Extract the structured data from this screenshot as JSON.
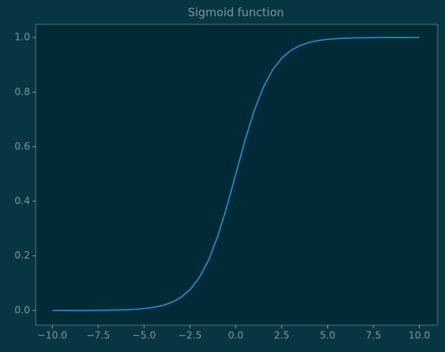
{
  "chart_data": {
    "type": "line",
    "title": "Sigmoid function",
    "x": [
      -10,
      -9.5,
      -9,
      -8.5,
      -8,
      -7.5,
      -7,
      -6.5,
      -6,
      -5.5,
      -5,
      -4.5,
      -4,
      -3.5,
      -3,
      -2.5,
      -2,
      -1.5,
      -1,
      -0.5,
      0,
      0.5,
      1,
      1.5,
      2,
      2.5,
      3,
      3.5,
      4,
      4.5,
      5,
      5.5,
      6,
      6.5,
      7,
      7.5,
      8,
      8.5,
      9,
      9.5,
      10
    ],
    "series": [
      {
        "color": "#268bd2",
        "values": [
          0.0,
          0.0001,
          0.0001,
          0.0002,
          0.0003,
          0.0006,
          0.0009,
          0.0015,
          0.0025,
          0.0041,
          0.0067,
          0.011,
          0.018,
          0.0293,
          0.0474,
          0.0759,
          0.1192,
          0.1824,
          0.2689,
          0.3775,
          0.5,
          0.6225,
          0.7311,
          0.8176,
          0.8808,
          0.9241,
          0.9526,
          0.9707,
          0.982,
          0.989,
          0.9933,
          0.9959,
          0.9975,
          0.9985,
          0.9991,
          0.9994,
          0.9997,
          0.9998,
          0.9999,
          0.9999,
          1.0
        ]
      }
    ],
    "xlim": [
      -10.9,
      11
    ],
    "ylim": [
      -0.054,
      1.048
    ],
    "xticks": [
      {
        "value": -10,
        "label": "−10.0"
      },
      {
        "value": -7.5,
        "label": "−7.5"
      },
      {
        "value": -5,
        "label": "−5.0"
      },
      {
        "value": -2.5,
        "label": "−2.5"
      },
      {
        "value": 0,
        "label": "0.0"
      },
      2.5,
      {
        "value": 5,
        "label": "5.0"
      },
      7.5,
      {
        "value": 10,
        "label": "10.0"
      }
    ],
    "yticks": [
      {
        "value": 0,
        "label": "0.0"
      },
      0.2,
      0.4,
      0.6,
      0.8,
      {
        "value": 1,
        "label": "1.0"
      }
    ],
    "grid": false
  }
}
